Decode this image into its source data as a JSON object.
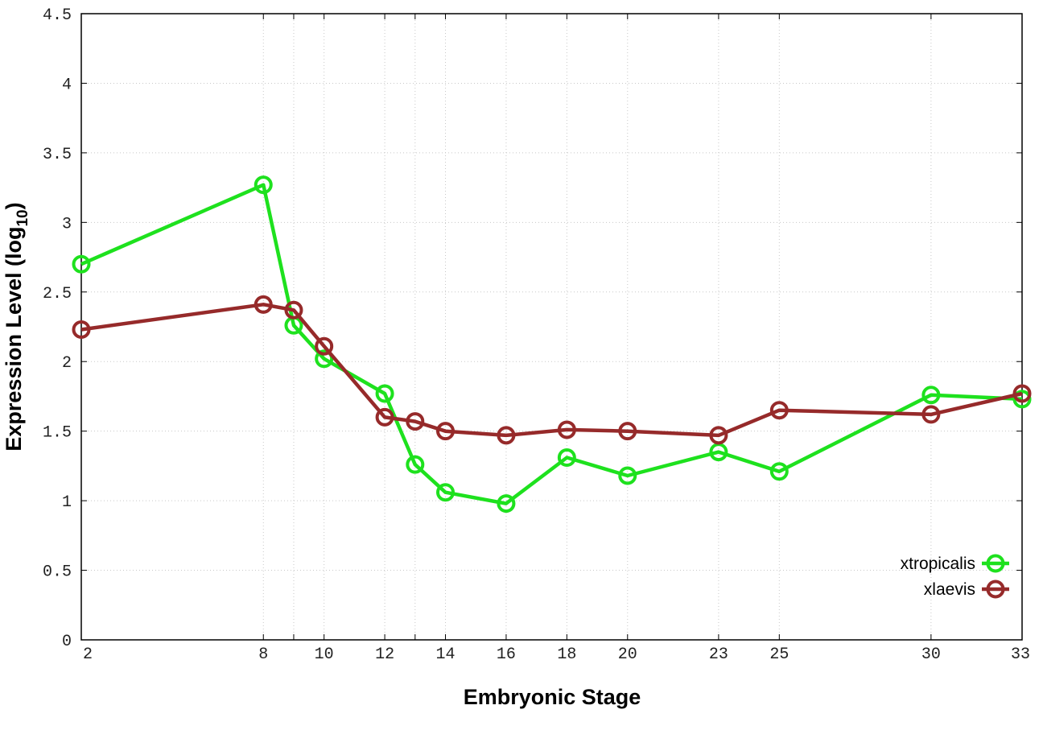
{
  "chart_data": {
    "type": "line",
    "title": "",
    "xlabel": "Embryonic Stage",
    "ylabel": {
      "main": "Expression Level (log",
      "sub": "10",
      "close": ")"
    },
    "x_ticks": [
      2,
      8,
      9,
      10,
      12,
      13,
      14,
      16,
      18,
      20,
      23,
      25,
      30,
      33
    ],
    "x_tick_labels": [
      "2",
      "8",
      "10",
      "12",
      "14",
      "16",
      "18",
      "20",
      "23",
      "25",
      "30",
      "33"
    ],
    "x_tick_label_values": [
      2,
      8,
      10,
      12,
      14,
      16,
      18,
      20,
      23,
      25,
      30,
      33
    ],
    "y_ticks": [
      0,
      0.5,
      1,
      1.5,
      2,
      2.5,
      3,
      3.5,
      4,
      4.5
    ],
    "y_tick_labels": [
      "0",
      "0.5",
      "1",
      "1.5",
      "2",
      "2.5",
      "3",
      "3.5",
      "4",
      "4.5"
    ],
    "xlim": [
      2,
      33
    ],
    "ylim": [
      0,
      4.5
    ],
    "grid": true,
    "legend_position": "bottom-right",
    "x": [
      2,
      8,
      9,
      10,
      12,
      13,
      14,
      16,
      18,
      20,
      23,
      25,
      30,
      33
    ],
    "series": [
      {
        "name": "xtropicalis",
        "color": "#1ee11e",
        "values": [
          2.7,
          3.27,
          2.26,
          2.02,
          1.77,
          1.26,
          1.06,
          0.98,
          1.31,
          1.18,
          1.35,
          1.21,
          1.76,
          1.73
        ]
      },
      {
        "name": "xlaevis",
        "color": "#962a2a",
        "values": [
          2.23,
          2.41,
          2.37,
          2.11,
          1.6,
          1.57,
          1.5,
          1.47,
          1.51,
          1.5,
          1.47,
          1.65,
          1.62,
          1.77
        ]
      }
    ]
  }
}
